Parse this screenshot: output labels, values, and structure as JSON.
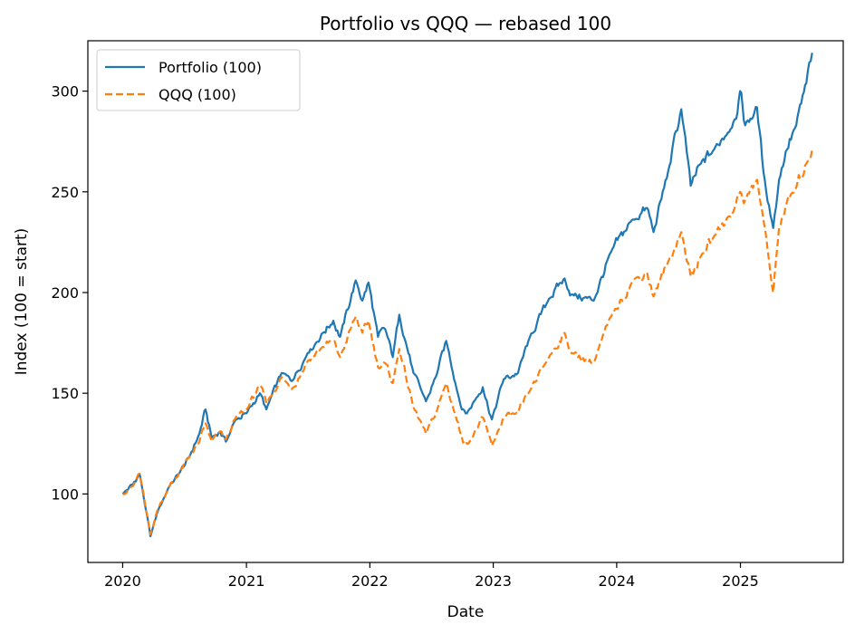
{
  "chart_data": {
    "type": "line",
    "title": "Portfolio vs QQQ — rebased 100",
    "xlabel": "Date",
    "ylabel": "Index (100 = start)",
    "x_ticks": [
      "2020",
      "2021",
      "2022",
      "2023",
      "2024",
      "2025"
    ],
    "y_ticks": [
      100,
      150,
      200,
      250,
      300
    ],
    "xlim": [
      "2019-09-20",
      "2025-11-01"
    ],
    "ylim": [
      66,
      325
    ],
    "grid": false,
    "legend_position": "top-left",
    "series": [
      {
        "name": "Portfolio (100)",
        "color": "#1f77b4",
        "style": "solid",
        "points": [
          [
            "2020-01-01",
            100
          ],
          [
            "2020-02-01",
            105
          ],
          [
            "2020-02-20",
            110
          ],
          [
            "2020-03-10",
            92
          ],
          [
            "2020-03-23",
            79
          ],
          [
            "2020-04-15",
            92
          ],
          [
            "2020-05-15",
            103
          ],
          [
            "2020-06-15",
            110
          ],
          [
            "2020-07-15",
            118
          ],
          [
            "2020-08-15",
            130
          ],
          [
            "2020-09-02",
            142
          ],
          [
            "2020-09-20",
            128
          ],
          [
            "2020-10-15",
            131
          ],
          [
            "2020-11-01",
            126
          ],
          [
            "2020-12-01",
            137
          ],
          [
            "2021-01-01",
            140
          ],
          [
            "2021-02-10",
            150
          ],
          [
            "2021-03-01",
            142
          ],
          [
            "2021-04-15",
            160
          ],
          [
            "2021-05-15",
            156
          ],
          [
            "2021-07-01",
            170
          ],
          [
            "2021-08-15",
            180
          ],
          [
            "2021-09-15",
            186
          ],
          [
            "2021-10-05",
            178
          ],
          [
            "2021-11-20",
            206
          ],
          [
            "2021-12-10",
            196
          ],
          [
            "2021-12-28",
            205
          ],
          [
            "2022-01-25",
            178
          ],
          [
            "2022-02-15",
            182
          ],
          [
            "2022-03-10",
            168
          ],
          [
            "2022-03-29",
            189
          ],
          [
            "2022-05-10",
            160
          ],
          [
            "2022-06-16",
            146
          ],
          [
            "2022-07-15",
            158
          ],
          [
            "2022-08-15",
            176
          ],
          [
            "2022-09-30",
            142
          ],
          [
            "2022-10-15",
            140
          ],
          [
            "2022-11-05",
            146
          ],
          [
            "2022-12-01",
            153
          ],
          [
            "2022-12-28",
            137
          ],
          [
            "2023-02-01",
            157
          ],
          [
            "2023-03-15",
            160
          ],
          [
            "2023-04-15",
            176
          ],
          [
            "2023-06-15",
            197
          ],
          [
            "2023-07-31",
            207
          ],
          [
            "2023-08-20",
            199
          ],
          [
            "2023-10-25",
            196
          ],
          [
            "2023-12-15",
            220
          ],
          [
            "2024-02-15",
            236
          ],
          [
            "2024-03-31",
            242
          ],
          [
            "2024-04-19",
            230
          ],
          [
            "2024-06-01",
            260
          ],
          [
            "2024-07-10",
            291
          ],
          [
            "2024-08-07",
            253
          ],
          [
            "2024-09-06",
            264
          ],
          [
            "2024-10-15",
            271
          ],
          [
            "2024-12-15",
            286
          ],
          [
            "2024-12-31",
            300
          ],
          [
            "2025-01-15",
            283
          ],
          [
            "2025-02-19",
            292
          ],
          [
            "2025-03-10",
            260
          ],
          [
            "2025-04-08",
            232
          ],
          [
            "2025-04-25",
            256
          ],
          [
            "2025-05-15",
            270
          ],
          [
            "2025-06-15",
            283
          ],
          [
            "2025-07-15",
            304
          ],
          [
            "2025-08-01",
            319
          ]
        ]
      },
      {
        "name": "QQQ (100)",
        "color": "#ff7f0e",
        "style": "dashed",
        "points": [
          [
            "2020-01-01",
            100
          ],
          [
            "2020-02-01",
            104
          ],
          [
            "2020-02-20",
            110
          ],
          [
            "2020-03-10",
            92
          ],
          [
            "2020-03-23",
            80
          ],
          [
            "2020-04-15",
            93
          ],
          [
            "2020-05-15",
            103
          ],
          [
            "2020-06-15",
            110
          ],
          [
            "2020-07-15",
            118
          ],
          [
            "2020-08-15",
            126
          ],
          [
            "2020-09-02",
            135
          ],
          [
            "2020-09-20",
            126
          ],
          [
            "2020-10-15",
            131
          ],
          [
            "2020-11-01",
            127
          ],
          [
            "2020-12-01",
            138
          ],
          [
            "2021-01-01",
            142
          ],
          [
            "2021-02-10",
            154
          ],
          [
            "2021-03-01",
            145
          ],
          [
            "2021-04-15",
            158
          ],
          [
            "2021-05-15",
            152
          ],
          [
            "2021-07-01",
            166
          ],
          [
            "2021-08-15",
            173
          ],
          [
            "2021-09-15",
            176
          ],
          [
            "2021-10-05",
            168
          ],
          [
            "2021-11-20",
            188
          ],
          [
            "2021-12-10",
            180
          ],
          [
            "2021-12-28",
            186
          ],
          [
            "2022-01-25",
            163
          ],
          [
            "2022-02-15",
            165
          ],
          [
            "2022-03-10",
            155
          ],
          [
            "2022-03-29",
            172
          ],
          [
            "2022-05-10",
            143
          ],
          [
            "2022-06-16",
            130
          ],
          [
            "2022-07-15",
            140
          ],
          [
            "2022-08-15",
            155
          ],
          [
            "2022-09-30",
            128
          ],
          [
            "2022-10-15",
            125
          ],
          [
            "2022-11-05",
            130
          ],
          [
            "2022-12-01",
            138
          ],
          [
            "2022-12-28",
            124
          ],
          [
            "2023-02-01",
            138
          ],
          [
            "2023-03-15",
            140
          ],
          [
            "2023-04-15",
            150
          ],
          [
            "2023-06-15",
            168
          ],
          [
            "2023-07-31",
            180
          ],
          [
            "2023-08-20",
            170
          ],
          [
            "2023-10-25",
            165
          ],
          [
            "2023-12-15",
            188
          ],
          [
            "2024-02-15",
            205
          ],
          [
            "2024-03-31",
            210
          ],
          [
            "2024-04-19",
            198
          ],
          [
            "2024-06-01",
            215
          ],
          [
            "2024-07-10",
            230
          ],
          [
            "2024-08-07",
            208
          ],
          [
            "2024-09-06",
            218
          ],
          [
            "2024-10-15",
            228
          ],
          [
            "2024-12-15",
            242
          ],
          [
            "2024-12-31",
            250
          ],
          [
            "2025-01-15",
            246
          ],
          [
            "2025-02-19",
            256
          ],
          [
            "2025-03-10",
            236
          ],
          [
            "2025-04-08",
            200
          ],
          [
            "2025-04-25",
            232
          ],
          [
            "2025-05-15",
            243
          ],
          [
            "2025-06-15",
            252
          ],
          [
            "2025-07-15",
            264
          ],
          [
            "2025-08-01",
            271
          ]
        ]
      }
    ]
  }
}
